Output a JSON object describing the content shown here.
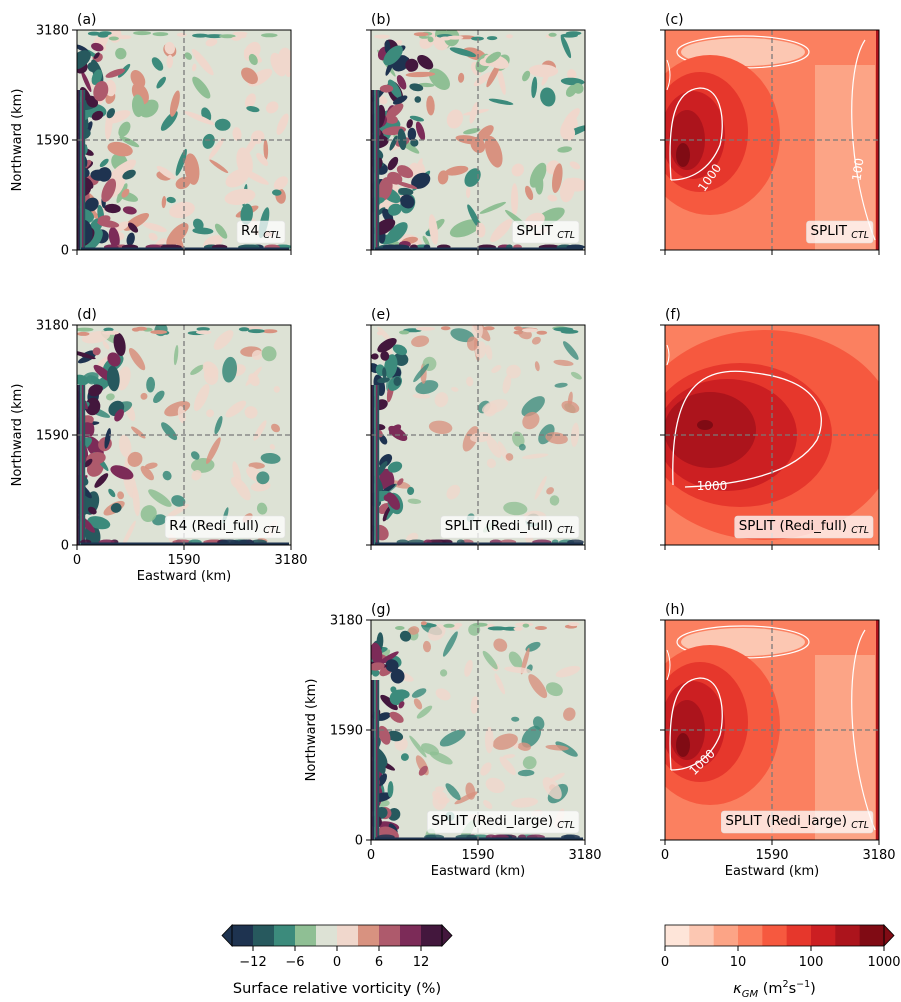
{
  "chart_data": {
    "type": "heatmap",
    "x_ticks": [
      "0",
      "1590",
      "3180"
    ],
    "y_ticks": [
      "0",
      "1590",
      "3180"
    ],
    "xlabel": "Eastward (km)",
    "ylabel": "Northward (km)",
    "domain_km": [
      0,
      3180
    ],
    "panels": [
      {
        "tag": "(a)",
        "label_main": "R4",
        "label_sub": "CTL",
        "field": "vorticity",
        "contour_labels": []
      },
      {
        "tag": "(b)",
        "label_main": "SPLIT",
        "label_sub": "CTL",
        "field": "vorticity",
        "contour_labels": []
      },
      {
        "tag": "(c)",
        "label_main": "SPLIT",
        "label_sub": "CTL",
        "field": "kgm",
        "contour_labels": [
          "1000",
          "100"
        ]
      },
      {
        "tag": "(d)",
        "label_main": "R4 (Redi_full)",
        "label_sub": "CTL",
        "field": "vorticity",
        "contour_labels": []
      },
      {
        "tag": "(e)",
        "label_main": "SPLIT (Redi_full)",
        "label_sub": "CTL",
        "field": "vorticity",
        "contour_labels": []
      },
      {
        "tag": "(f)",
        "label_main": "SPLIT (Redi_full)",
        "label_sub": "CTL",
        "field": "kgm",
        "contour_labels": [
          "1000"
        ]
      },
      {
        "tag": "(g)",
        "label_main": "SPLIT (Redi_large)",
        "label_sub": "CTL",
        "field": "vorticity",
        "contour_labels": []
      },
      {
        "tag": "(h)",
        "label_main": "SPLIT (Redi_large)",
        "label_sub": "CTL",
        "field": "kgm",
        "contour_labels": [
          "1000"
        ]
      }
    ],
    "colorbars": [
      {
        "label": "Surface relative vorticity (%)",
        "ticks": [
          "−12",
          "−6",
          "0",
          "6",
          "12"
        ],
        "tick_values": [
          -12,
          -6,
          0,
          6,
          12
        ],
        "range": [
          -15,
          15
        ],
        "extend": "both",
        "colors": [
          "#1e3350",
          "#27595e",
          "#3c8b7c",
          "#8fbf94",
          "#dde2d5",
          "#f0d7cc",
          "#d89280",
          "#ae5a6c",
          "#7c2b58",
          "#43173d"
        ]
      },
      {
        "label": "κGM (m²s⁻¹)",
        "ticks": [
          "0",
          "10",
          "100",
          "1000"
        ],
        "scale": "log",
        "extend": "max",
        "colors": [
          "#fee5d9",
          "#fcc7b2",
          "#fca486",
          "#fb8060",
          "#f6593f",
          "#e6372c",
          "#cc1f22",
          "#ac141c",
          "#800b14"
        ]
      }
    ]
  }
}
